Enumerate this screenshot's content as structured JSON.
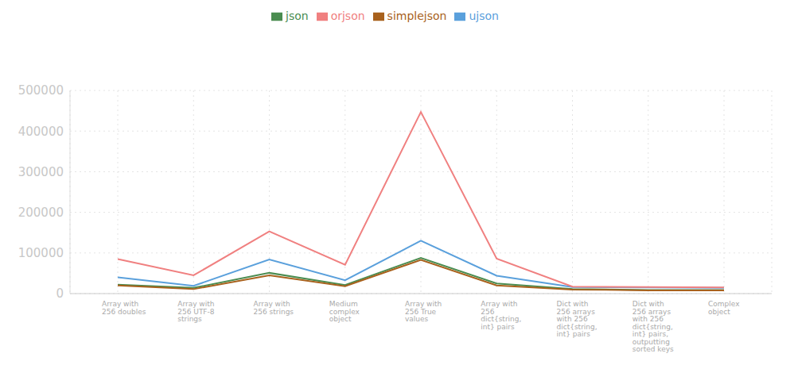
{
  "chart_data": {
    "type": "line",
    "categories": [
      "Array with 256 doubles",
      "Array with 256 UTF-8 strings",
      "Array with 256 strings",
      "Medium complex object",
      "Array with 256 True values",
      "Array with 256 dict{string, int} pairs",
      "Dict with 256 arrays with 256 dict{string, int} pairs",
      "Dict with 256 arrays with 256 dict{string, int} pairs, outputting sorted keys",
      "Complex object"
    ],
    "series": [
      {
        "name": "json",
        "color": "#4a8c50",
        "values": [
          22000,
          14000,
          51000,
          21000,
          88000,
          25000,
          11000,
          9000,
          9000
        ]
      },
      {
        "name": "simplejson",
        "color": "#a8611c",
        "values": [
          20000,
          11000,
          45000,
          18000,
          83000,
          20000,
          10000,
          8000,
          8000
        ]
      },
      {
        "name": "ujson",
        "color": "#5aa0dc",
        "values": [
          40000,
          19000,
          84000,
          33000,
          130000,
          44000,
          16000,
          15000,
          14000
        ]
      },
      {
        "name": "orjson",
        "color": "#f08080",
        "values": [
          85000,
          45000,
          153000,
          71000,
          447000,
          86000,
          17000,
          16000,
          15000
        ]
      }
    ],
    "ylim": [
      0,
      500000
    ],
    "yticks": [
      0,
      100000,
      200000,
      300000,
      400000,
      500000
    ],
    "grid": true,
    "legend": "top"
  }
}
